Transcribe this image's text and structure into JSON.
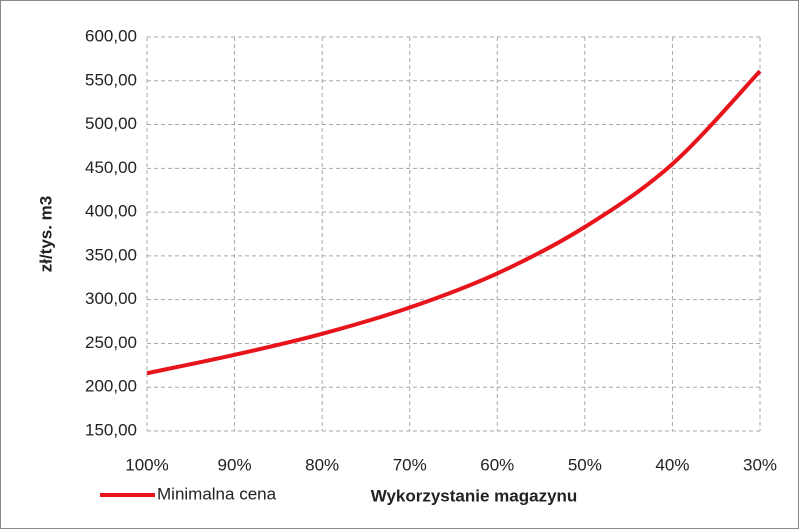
{
  "chart_data": {
    "type": "line",
    "y_label": "zł/tys. m3",
    "x_label": "Wykorzystanie magazynu",
    "categories": [
      "100%",
      "90%",
      "80%",
      "70%",
      "60%",
      "50%",
      "40%",
      "30%"
    ],
    "series": [
      {
        "name": "Minimalna cena",
        "color": "#e8141b",
        "values": [
          216,
          237,
          261,
          291,
          330,
          383,
          455,
          561
        ]
      }
    ],
    "ylim": [
      150,
      600
    ],
    "yticks": [
      {
        "value": 150,
        "label": "150,00"
      },
      {
        "value": 200,
        "label": "200,00"
      },
      {
        "value": 250,
        "label": "250,00"
      },
      {
        "value": 300,
        "label": "300,00"
      },
      {
        "value": 350,
        "label": "350,00"
      },
      {
        "value": 400,
        "label": "400,00"
      },
      {
        "value": 450,
        "label": "450,00"
      },
      {
        "value": 500,
        "label": "500,00"
      },
      {
        "value": 550,
        "label": "550,00"
      },
      {
        "value": 600,
        "label": "600,00"
      }
    ],
    "grid": true,
    "legend": "bottom-left"
  }
}
